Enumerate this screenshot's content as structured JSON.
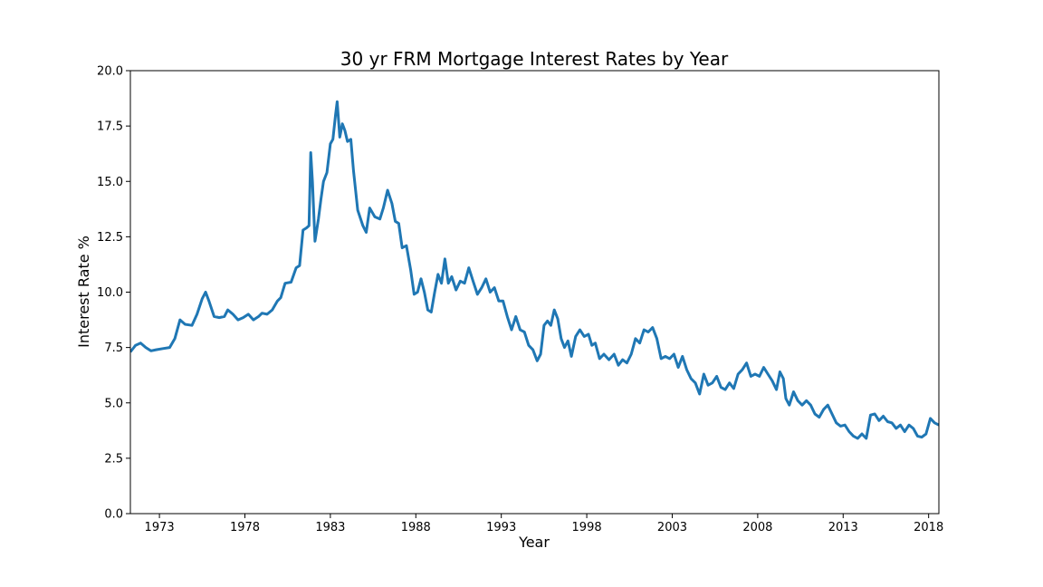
{
  "chart_data": {
    "type": "line",
    "title": "30 yr FRM Mortgage Interest Rates by Year",
    "xlabel": "Year",
    "ylabel": "Interest Rate %",
    "xlim": [
      1971.3,
      2018.6
    ],
    "ylim": [
      0,
      20
    ],
    "x_ticks": [
      1973,
      1978,
      1983,
      1988,
      1993,
      1998,
      2003,
      2008,
      2013,
      2018
    ],
    "x_tick_labels": [
      "1973",
      "1978",
      "1983",
      "1988",
      "1993",
      "1998",
      "2003",
      "2008",
      "2013",
      "2018"
    ],
    "y_ticks": [
      0,
      2.5,
      5,
      7.5,
      10,
      12.5,
      15,
      17.5,
      20
    ],
    "y_tick_labels": [
      "0.0",
      "2.5",
      "5.0",
      "7.5",
      "10.0",
      "12.5",
      "15.0",
      "17.5",
      "20.0"
    ],
    "grid": false,
    "line_color": "#1f77b4",
    "series": [
      {
        "name": "",
        "points": [
          [
            1971.3,
            7.3
          ],
          [
            1971.6,
            7.6
          ],
          [
            1971.9,
            7.7
          ],
          [
            1972.2,
            7.5
          ],
          [
            1972.5,
            7.35
          ],
          [
            1972.8,
            7.4
          ],
          [
            1973.2,
            7.45
          ],
          [
            1973.6,
            7.5
          ],
          [
            1973.9,
            7.9
          ],
          [
            1974.2,
            8.75
          ],
          [
            1974.5,
            8.55
          ],
          [
            1974.9,
            8.5
          ],
          [
            1975.2,
            9.0
          ],
          [
            1975.5,
            9.7
          ],
          [
            1975.7,
            10.0
          ],
          [
            1975.9,
            9.6
          ],
          [
            1976.2,
            8.9
          ],
          [
            1976.5,
            8.85
          ],
          [
            1976.8,
            8.9
          ],
          [
            1977.0,
            9.2
          ],
          [
            1977.3,
            9.0
          ],
          [
            1977.6,
            8.75
          ],
          [
            1977.9,
            8.85
          ],
          [
            1978.2,
            9.0
          ],
          [
            1978.5,
            8.75
          ],
          [
            1978.8,
            8.9
          ],
          [
            1979.0,
            9.05
          ],
          [
            1979.3,
            9.0
          ],
          [
            1979.6,
            9.2
          ],
          [
            1979.9,
            9.6
          ],
          [
            1980.1,
            9.75
          ],
          [
            1980.35,
            10.4
          ],
          [
            1980.7,
            10.45
          ],
          [
            1981.0,
            11.1
          ],
          [
            1981.2,
            11.2
          ],
          [
            1981.4,
            12.8
          ],
          [
            1981.6,
            12.9
          ],
          [
            1981.75,
            13.0
          ],
          [
            1981.85,
            16.3
          ],
          [
            1981.95,
            15.0
          ],
          [
            1982.1,
            12.3
          ],
          [
            1982.3,
            13.3
          ],
          [
            1982.45,
            14.2
          ],
          [
            1982.6,
            15.0
          ],
          [
            1982.8,
            15.4
          ],
          [
            1983.0,
            16.7
          ],
          [
            1983.15,
            16.9
          ],
          [
            1983.3,
            18.0
          ],
          [
            1983.4,
            18.6
          ],
          [
            1983.55,
            17.0
          ],
          [
            1983.7,
            17.6
          ],
          [
            1983.85,
            17.3
          ],
          [
            1984.0,
            16.8
          ],
          [
            1984.2,
            16.9
          ],
          [
            1984.35,
            15.5
          ],
          [
            1984.6,
            13.7
          ],
          [
            1984.9,
            13.0
          ],
          [
            1985.1,
            12.7
          ],
          [
            1985.3,
            13.8
          ],
          [
            1985.6,
            13.4
          ],
          [
            1985.9,
            13.3
          ],
          [
            1986.1,
            13.8
          ],
          [
            1986.35,
            14.6
          ],
          [
            1986.6,
            14.0
          ],
          [
            1986.8,
            13.2
          ],
          [
            1987.0,
            13.1
          ],
          [
            1987.2,
            12.0
          ],
          [
            1987.45,
            12.1
          ],
          [
            1987.7,
            11.0
          ],
          [
            1987.9,
            9.9
          ],
          [
            1988.1,
            10.0
          ],
          [
            1988.3,
            10.6
          ],
          [
            1988.5,
            10.0
          ],
          [
            1988.7,
            9.2
          ],
          [
            1988.9,
            9.1
          ],
          [
            1989.1,
            10.0
          ],
          [
            1989.3,
            10.8
          ],
          [
            1989.5,
            10.4
          ],
          [
            1989.7,
            11.5
          ],
          [
            1989.9,
            10.4
          ],
          [
            1990.1,
            10.7
          ],
          [
            1990.35,
            10.1
          ],
          [
            1990.6,
            10.5
          ],
          [
            1990.85,
            10.4
          ],
          [
            1991.1,
            11.1
          ],
          [
            1991.35,
            10.5
          ],
          [
            1991.6,
            9.9
          ],
          [
            1991.85,
            10.2
          ],
          [
            1992.1,
            10.6
          ],
          [
            1992.35,
            10.0
          ],
          [
            1992.6,
            10.2
          ],
          [
            1992.85,
            9.6
          ],
          [
            1993.1,
            9.6
          ],
          [
            1993.35,
            8.9
          ],
          [
            1993.6,
            8.3
          ],
          [
            1993.85,
            8.9
          ],
          [
            1994.1,
            8.3
          ],
          [
            1994.35,
            8.2
          ],
          [
            1994.6,
            7.6
          ],
          [
            1994.85,
            7.4
          ],
          [
            1995.1,
            6.9
          ],
          [
            1995.3,
            7.2
          ],
          [
            1995.5,
            8.5
          ],
          [
            1995.7,
            8.7
          ],
          [
            1995.9,
            8.5
          ],
          [
            1996.1,
            9.2
          ],
          [
            1996.3,
            8.8
          ],
          [
            1996.5,
            7.9
          ],
          [
            1996.7,
            7.5
          ],
          [
            1996.9,
            7.8
          ],
          [
            1997.1,
            7.1
          ],
          [
            1997.35,
            8.0
          ],
          [
            1997.6,
            8.3
          ],
          [
            1997.85,
            8.0
          ],
          [
            1998.1,
            8.1
          ],
          [
            1998.3,
            7.6
          ],
          [
            1998.5,
            7.7
          ],
          [
            1998.75,
            7.0
          ],
          [
            1999.0,
            7.2
          ],
          [
            1999.3,
            6.95
          ],
          [
            1999.6,
            7.2
          ],
          [
            1999.85,
            6.7
          ],
          [
            2000.1,
            6.95
          ],
          [
            2000.35,
            6.8
          ],
          [
            2000.6,
            7.2
          ],
          [
            2000.85,
            7.9
          ],
          [
            2001.1,
            7.7
          ],
          [
            2001.35,
            8.3
          ],
          [
            2001.6,
            8.2
          ],
          [
            2001.85,
            8.4
          ],
          [
            2002.1,
            7.9
          ],
          [
            2002.35,
            7.0
          ],
          [
            2002.6,
            7.1
          ],
          [
            2002.85,
            7.0
          ],
          [
            2003.1,
            7.2
          ],
          [
            2003.35,
            6.6
          ],
          [
            2003.6,
            7.1
          ],
          [
            2003.85,
            6.5
          ],
          [
            2004.1,
            6.1
          ],
          [
            2004.35,
            5.9
          ],
          [
            2004.6,
            5.4
          ],
          [
            2004.85,
            6.3
          ],
          [
            2005.1,
            5.8
          ],
          [
            2005.35,
            5.9
          ],
          [
            2005.6,
            6.2
          ],
          [
            2005.85,
            5.7
          ],
          [
            2006.1,
            5.6
          ],
          [
            2006.35,
            5.9
          ],
          [
            2006.6,
            5.65
          ],
          [
            2006.85,
            6.3
          ],
          [
            2007.1,
            6.5
          ],
          [
            2007.35,
            6.8
          ],
          [
            2007.6,
            6.2
          ],
          [
            2007.85,
            6.3
          ],
          [
            2008.1,
            6.2
          ],
          [
            2008.35,
            6.6
          ],
          [
            2008.6,
            6.3
          ],
          [
            2008.85,
            6.0
          ],
          [
            2009.1,
            5.6
          ],
          [
            2009.3,
            6.4
          ],
          [
            2009.5,
            6.1
          ],
          [
            2009.65,
            5.2
          ],
          [
            2009.85,
            4.9
          ],
          [
            2010.1,
            5.5
          ],
          [
            2010.35,
            5.1
          ],
          [
            2010.6,
            4.9
          ],
          [
            2010.85,
            5.1
          ],
          [
            2011.1,
            4.9
          ],
          [
            2011.35,
            4.5
          ],
          [
            2011.6,
            4.35
          ],
          [
            2011.85,
            4.7
          ],
          [
            2012.1,
            4.9
          ],
          [
            2012.35,
            4.5
          ],
          [
            2012.6,
            4.1
          ],
          [
            2012.85,
            3.95
          ],
          [
            2013.1,
            4.0
          ],
          [
            2013.35,
            3.7
          ],
          [
            2013.6,
            3.5
          ],
          [
            2013.85,
            3.4
          ],
          [
            2014.1,
            3.6
          ],
          [
            2014.35,
            3.4
          ],
          [
            2014.6,
            4.45
          ],
          [
            2014.85,
            4.5
          ],
          [
            2015.1,
            4.2
          ],
          [
            2015.35,
            4.4
          ],
          [
            2015.6,
            4.15
          ],
          [
            2015.85,
            4.1
          ],
          [
            2016.1,
            3.85
          ],
          [
            2016.35,
            4.0
          ],
          [
            2016.6,
            3.7
          ],
          [
            2016.85,
            4.0
          ],
          [
            2017.1,
            3.85
          ],
          [
            2017.35,
            3.5
          ],
          [
            2017.6,
            3.45
          ],
          [
            2017.85,
            3.6
          ],
          [
            2018.1,
            4.3
          ],
          [
            2018.35,
            4.1
          ],
          [
            2018.6,
            4.0
          ]
        ]
      }
    ]
  }
}
